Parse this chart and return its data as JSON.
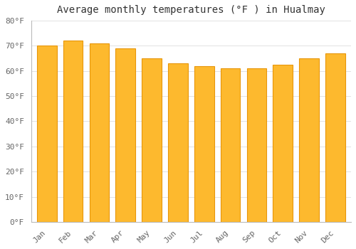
{
  "title": "Average monthly temperatures (°F ) in Hualmay",
  "months": [
    "Jan",
    "Feb",
    "Mar",
    "Apr",
    "May",
    "Jun",
    "Jul",
    "Aug",
    "Sep",
    "Oct",
    "Nov",
    "Dec"
  ],
  "values": [
    70.0,
    72.0,
    71.0,
    69.0,
    65.0,
    63.0,
    62.0,
    61.0,
    61.0,
    62.5,
    65.0,
    67.0
  ],
  "bar_color_face": "#FDB92E",
  "bar_color_edge": "#E8960A",
  "ylim": [
    0,
    80
  ],
  "yticks": [
    0,
    10,
    20,
    30,
    40,
    50,
    60,
    70,
    80
  ],
  "background_color": "#FFFFFF",
  "grid_color": "#DDDDDD",
  "title_fontsize": 10,
  "tick_fontsize": 8,
  "bar_width": 0.75
}
